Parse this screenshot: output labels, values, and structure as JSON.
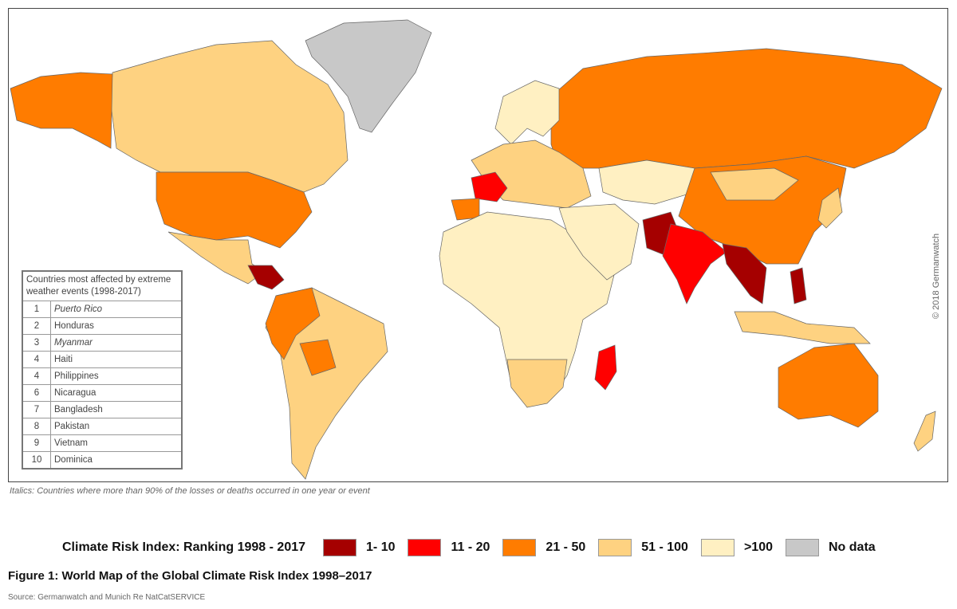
{
  "legend": {
    "title": "Climate Risk Index: Ranking 1998 - 2017",
    "items": [
      {
        "label": "1- 10",
        "color": "#a50000"
      },
      {
        "label": "11 - 20",
        "color": "#ff0000"
      },
      {
        "label": "21 - 50",
        "color": "#ff7c00"
      },
      {
        "label": "51 - 100",
        "color": "#fed281"
      },
      {
        "label": ">100",
        "color": "#fff0c2"
      },
      {
        "label": "No data",
        "color": "#c8c8c8"
      }
    ]
  },
  "table": {
    "title": "Countries most affected by extreme weather events (1998-2017)",
    "rows": [
      {
        "rank": "1",
        "country": "Puerto Rico",
        "italic": true
      },
      {
        "rank": "2",
        "country": "Honduras",
        "italic": false
      },
      {
        "rank": "3",
        "country": "Myanmar",
        "italic": true
      },
      {
        "rank": "4",
        "country": "Haiti",
        "italic": false
      },
      {
        "rank": "4",
        "country": "Philippines",
        "italic": false
      },
      {
        "rank": "6",
        "country": "Nicaragua",
        "italic": false
      },
      {
        "rank": "7",
        "country": "Bangladesh",
        "italic": false
      },
      {
        "rank": "8",
        "country": "Pakistan",
        "italic": false
      },
      {
        "rank": "9",
        "country": "Vietnam",
        "italic": false
      },
      {
        "rank": "10",
        "country": "Dominica",
        "italic": false
      }
    ]
  },
  "copyright": "© 2018 Germanwatch",
  "italics_note": "Italics: Countries where more than 90% of the losses or deaths occurred in one year or event",
  "figure_caption": "Figure 1: World Map of the Global Climate Risk Index 1998–2017",
  "source": "Source: Germanwatch and Munich Re NatCatSERVICE",
  "map_regions": [
    {
      "region": "greenland",
      "class": 5
    },
    {
      "region": "canada",
      "class": 3
    },
    {
      "region": "alaska",
      "class": 2
    },
    {
      "region": "usa",
      "class": 2
    },
    {
      "region": "mexico",
      "class": 3
    },
    {
      "region": "central-america",
      "class": 0
    },
    {
      "region": "south-america",
      "class": 3
    },
    {
      "region": "colombia-peru",
      "class": 2
    },
    {
      "region": "bolivia",
      "class": 2
    },
    {
      "region": "russia",
      "class": 2
    },
    {
      "region": "scandinavia",
      "class": 4
    },
    {
      "region": "europe",
      "class": 3
    },
    {
      "region": "france",
      "class": 1
    },
    {
      "region": "iberia",
      "class": 2
    },
    {
      "region": "africa",
      "class": 4
    },
    {
      "region": "southern-africa",
      "class": 3
    },
    {
      "region": "madagascar",
      "class": 1
    },
    {
      "region": "middle-east",
      "class": 4
    },
    {
      "region": "central-asia",
      "class": 4
    },
    {
      "region": "china",
      "class": 2
    },
    {
      "region": "mongolia",
      "class": 3
    },
    {
      "region": "pakistan",
      "class": 0
    },
    {
      "region": "india",
      "class": 1
    },
    {
      "region": "myanmar-vietnam",
      "class": 0
    },
    {
      "region": "philippines",
      "class": 0
    },
    {
      "region": "indonesia",
      "class": 3
    },
    {
      "region": "australia",
      "class": 2
    },
    {
      "region": "japan",
      "class": 3
    },
    {
      "region": "new-zealand",
      "class": 3
    }
  ]
}
